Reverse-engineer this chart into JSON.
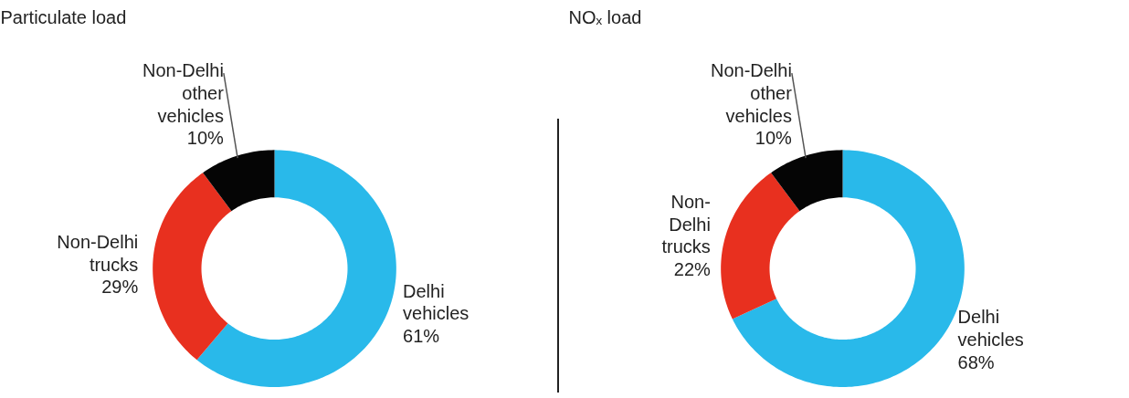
{
  "chart_data": [
    {
      "type": "donut",
      "title": "Particulate load",
      "categories": [
        "Delhi\nvehicles",
        "Non-Delhi\ntrucks",
        "Non-Delhi\nother\nvehicles"
      ],
      "values": [
        61,
        29,
        10
      ],
      "value_labels": [
        "61%",
        "29%",
        "10%"
      ],
      "colors": [
        "#29b9ea",
        "#e8301f",
        "#050505"
      ]
    },
    {
      "type": "donut",
      "title": "NOₓ load",
      "categories": [
        "Delhi\nvehicles",
        "Non-\nDelhi\ntrucks",
        "Non-Delhi\nother\nvehicles"
      ],
      "values": [
        68,
        22,
        10
      ],
      "value_labels": [
        "68%",
        "22%",
        "10%"
      ],
      "colors": [
        "#29b9ea",
        "#e8301f",
        "#050505"
      ]
    }
  ]
}
